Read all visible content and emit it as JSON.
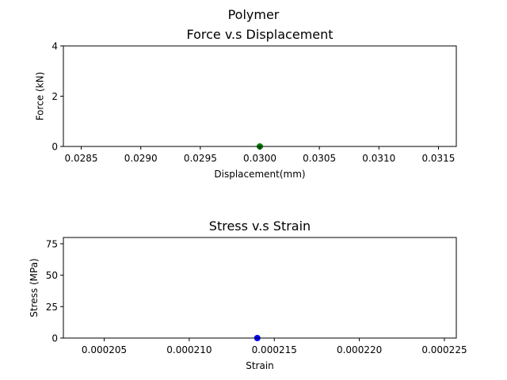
{
  "figure": {
    "suptitle": "Polymer"
  },
  "chart_data": [
    {
      "type": "scatter",
      "title": "Force v.s Displacement",
      "xlabel": "Displacement(mm)",
      "ylabel": "Force (kN)",
      "xlim": [
        0.02835,
        0.03165
      ],
      "ylim": [
        0,
        4
      ],
      "x_ticks": [
        0.0285,
        0.029,
        0.0295,
        0.03,
        0.0305,
        0.031,
        0.0315
      ],
      "x_tick_labels": [
        "0.0285",
        "0.0290",
        "0.0295",
        "0.0300",
        "0.0305",
        "0.0310",
        "0.0315"
      ],
      "y_ticks": [
        0,
        2,
        4
      ],
      "y_tick_labels": [
        "0",
        "2",
        "4"
      ],
      "grid": false,
      "series": [
        {
          "color": "#008000",
          "points": [
            {
              "x": 0.03,
              "y": 0
            }
          ]
        }
      ]
    },
    {
      "type": "scatter",
      "title": "Stress v.s Strain",
      "xlabel": "Strain",
      "ylabel": "Stress (MPa)",
      "xlim": [
        0.0002026,
        0.0002257
      ],
      "ylim": [
        0,
        80
      ],
      "x_ticks": [
        0.000205,
        0.00021,
        0.000215,
        0.00022,
        0.000225
      ],
      "x_tick_labels": [
        "0.000205",
        "0.000210",
        "0.000215",
        "0.000220",
        "0.000225"
      ],
      "y_ticks": [
        0,
        25,
        50,
        75
      ],
      "y_tick_labels": [
        "0",
        "25",
        "50",
        "75"
      ],
      "grid": false,
      "series": [
        {
          "color": "#0000ff",
          "points": [
            {
              "x": 0.000214,
              "y": 0
            }
          ]
        }
      ]
    }
  ]
}
